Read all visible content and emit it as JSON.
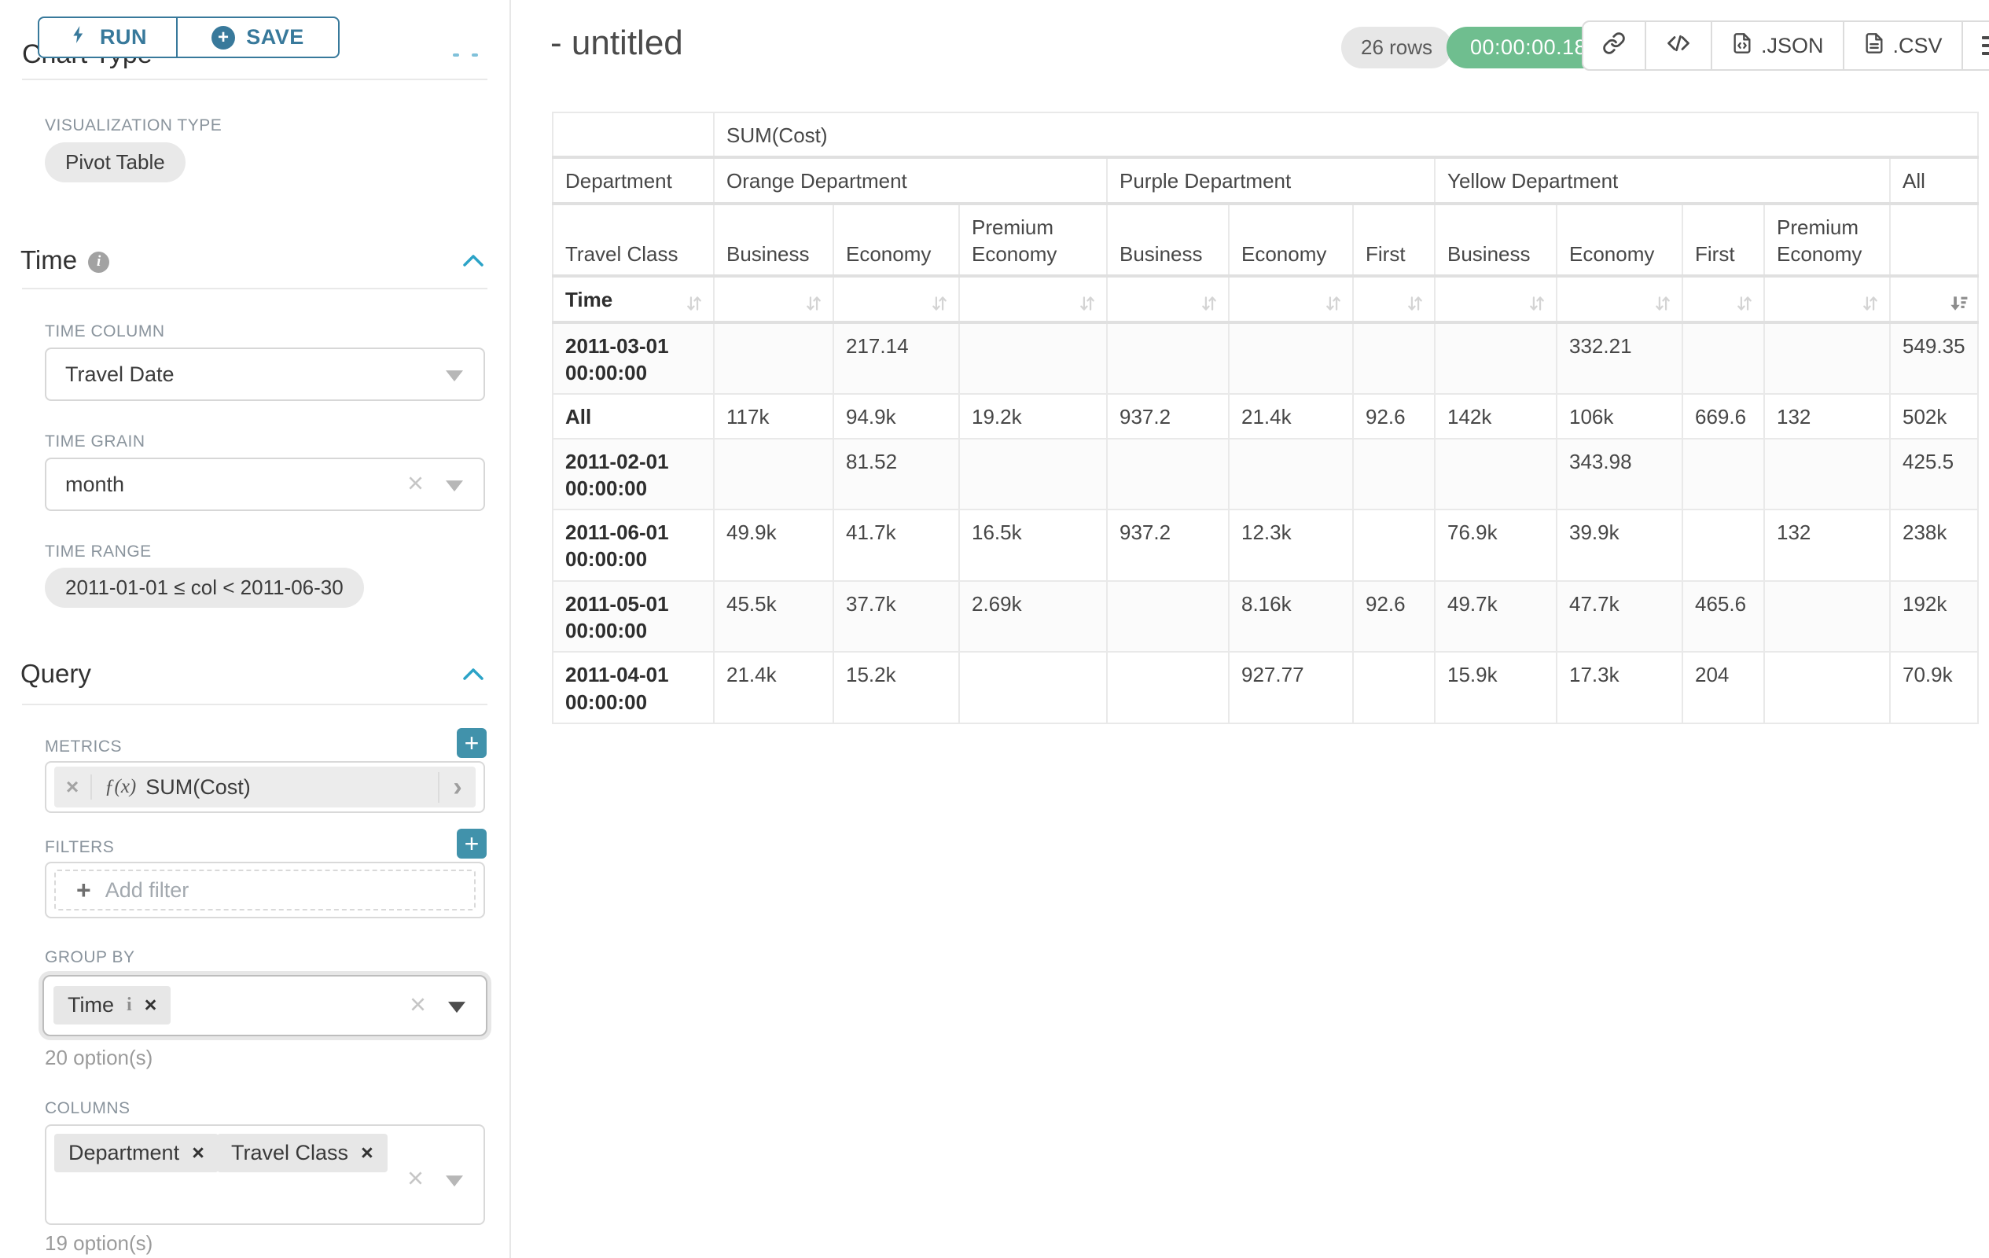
{
  "colors": {
    "accent_teal": "#38799b",
    "bright_teal_chevron": "#2ba3c7",
    "plus_button_teal": "#4192ab",
    "success_green": "#6fbe8f",
    "pill_gray": "#e9e9e9"
  },
  "sidebar": {
    "run_label": "RUN",
    "save_label": "SAVE",
    "chart_type_heading": "Chart Type",
    "visualization_type_label": "VISUALIZATION TYPE",
    "visualization_type_value": "Pivot Table",
    "time_section": {
      "title": "Time",
      "time_column_label": "TIME COLUMN",
      "time_column_value": "Travel Date",
      "time_grain_label": "TIME GRAIN",
      "time_grain_value": "month",
      "time_range_label": "TIME RANGE",
      "time_range_value": "2011-01-01 ≤ col < 2011-06-30"
    },
    "query_section": {
      "title": "Query",
      "metrics_label": "METRICS",
      "metric_fx": "ƒ(x)",
      "metric_value": "SUM(Cost)",
      "filters_label": "FILTERS",
      "add_filter_label": "Add filter",
      "group_by_label": "GROUP BY",
      "group_by_values": [
        "Time"
      ],
      "group_by_hint": "20 option(s)",
      "columns_label": "COLUMNS",
      "columns_values": [
        "Department",
        "Travel Class"
      ],
      "columns_hint": "19 option(s)"
    }
  },
  "header": {
    "title": "- untitled",
    "row_count_badge": "26 rows",
    "timer_badge": "00:00:00.18",
    "export_json_label": ".JSON",
    "export_csv_label": ".CSV"
  },
  "pivot_table": {
    "metric_header": "SUM(Cost)",
    "row_dimension_labels": {
      "department": "Department",
      "travel_class": "Travel Class",
      "time": "Time"
    },
    "column_groups": [
      {
        "label": "Orange Department",
        "children": [
          "Business",
          "Economy",
          "Premium Economy"
        ]
      },
      {
        "label": "Purple Department",
        "children": [
          "Business",
          "Economy",
          "First"
        ]
      },
      {
        "label": "Yellow Department",
        "children": [
          "Business",
          "Economy",
          "First",
          "Premium Economy"
        ]
      },
      {
        "label": "All",
        "children": [
          ""
        ]
      }
    ],
    "sorted_column_index": 10,
    "rows": [
      {
        "label": "2011-03-01 00:00:00",
        "values": [
          "",
          "217.14",
          "",
          "",
          "",
          "",
          "",
          "332.21",
          "",
          "",
          "549.35"
        ]
      },
      {
        "label": "All",
        "values": [
          "117k",
          "94.9k",
          "19.2k",
          "937.2",
          "21.4k",
          "92.6",
          "142k",
          "106k",
          "669.6",
          "132",
          "502k"
        ]
      },
      {
        "label": "2011-02-01 00:00:00",
        "values": [
          "",
          "81.52",
          "",
          "",
          "",
          "",
          "",
          "343.98",
          "",
          "",
          "425.5"
        ]
      },
      {
        "label": "2011-06-01 00:00:00",
        "values": [
          "49.9k",
          "41.7k",
          "16.5k",
          "937.2",
          "12.3k",
          "",
          "76.9k",
          "39.9k",
          "",
          "132",
          "238k"
        ]
      },
      {
        "label": "2011-05-01 00:00:00",
        "values": [
          "45.5k",
          "37.7k",
          "2.69k",
          "",
          "8.16k",
          "92.6",
          "49.7k",
          "47.7k",
          "465.6",
          "",
          "192k"
        ]
      },
      {
        "label": "2011-04-01 00:00:00",
        "values": [
          "21.4k",
          "15.2k",
          "",
          "",
          "927.77",
          "",
          "15.9k",
          "17.3k",
          "204",
          "",
          "70.9k"
        ]
      }
    ]
  }
}
